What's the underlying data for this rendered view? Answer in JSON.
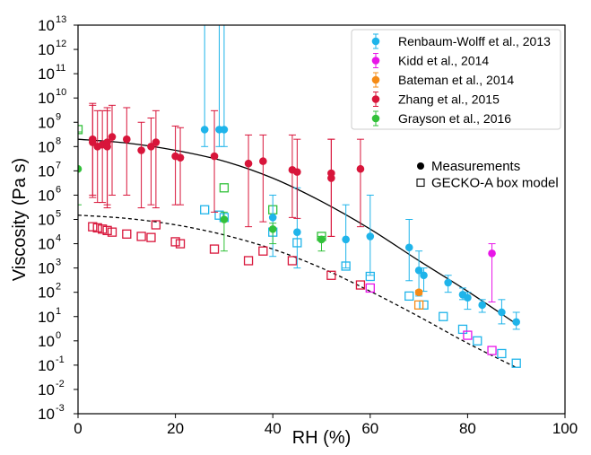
{
  "chart_data": {
    "type": "scatter",
    "xlabel": "RH (%)",
    "ylabel": "Viscosity (Pa s)",
    "xlim": [
      0,
      100
    ],
    "ylim_log10": [
      -3,
      13
    ],
    "xticks": [
      "0",
      "20",
      "40",
      "60",
      "80",
      "100"
    ],
    "yticks": [
      {
        "base": "10",
        "exp": "-3"
      },
      {
        "base": "10",
        "exp": "-2"
      },
      {
        "base": "10",
        "exp": "-1"
      },
      {
        "base": "10",
        "exp": "0"
      },
      {
        "base": "10",
        "exp": "1"
      },
      {
        "base": "10",
        "exp": "2"
      },
      {
        "base": "10",
        "exp": "3"
      },
      {
        "base": "10",
        "exp": "4"
      },
      {
        "base": "10",
        "exp": "5"
      },
      {
        "base": "10",
        "exp": "6"
      },
      {
        "base": "10",
        "exp": "7"
      },
      {
        "base": "10",
        "exp": "8"
      },
      {
        "base": "10",
        "exp": "9"
      },
      {
        "base": "10",
        "exp": "10"
      },
      {
        "base": "10",
        "exp": "11"
      },
      {
        "base": "10",
        "exp": "12"
      },
      {
        "base": "10",
        "exp": "13"
      }
    ],
    "grid": false,
    "legend_position": "top-right",
    "series": [
      {
        "name": "Renbaum-Wolff et al., 2013",
        "color": "#1fb4ea",
        "measurements": [
          {
            "x": 26,
            "y": 500000000.0,
            "lo": 100000000.0,
            "hi": 10000000000000.0
          },
          {
            "x": 29,
            "y": 500000000.0,
            "lo": 100000000.0,
            "hi": 10000000000000.0
          },
          {
            "x": 30,
            "y": 500000000.0,
            "lo": 100000000.0,
            "hi": 10000000000000.0
          },
          {
            "x": 40,
            "y": 120000.0,
            "lo": 3000.0,
            "hi": 1000000.0
          },
          {
            "x": 45,
            "y": 30000.0,
            "lo": 1000.0,
            "hi": 2000000.0
          },
          {
            "x": 55,
            "y": 15000.0,
            "lo": 1000.0,
            "hi": 400000.0
          },
          {
            "x": 60,
            "y": 20000.0,
            "lo": 500.0,
            "hi": 1000000.0
          },
          {
            "x": 68,
            "y": 7000.0,
            "lo": 300.0,
            "hi": 100000.0
          },
          {
            "x": 70,
            "y": 800.0,
            "lo": 70.0,
            "hi": 5000.0
          },
          {
            "x": 71,
            "y": 500.0,
            "lo": 110.0,
            "hi": 1000.0
          },
          {
            "x": 76,
            "y": 250.0,
            "lo": 100.0,
            "hi": 500.0
          },
          {
            "x": 79,
            "y": 80.0,
            "lo": 50.0,
            "hi": 150.0
          },
          {
            "x": 80,
            "y": 60.0,
            "lo": 20.0,
            "hi": 100.0
          },
          {
            "x": 83,
            "y": 30.0,
            "lo": 15.0,
            "hi": 50.0
          },
          {
            "x": 87,
            "y": 15.0,
            "lo": 5,
            "hi": 50.0
          },
          {
            "x": 90,
            "y": 6,
            "lo": 3,
            "hi": 15.0
          }
        ],
        "model": [
          {
            "x": 26,
            "y": 250000.0
          },
          {
            "x": 29,
            "y": 150000.0
          },
          {
            "x": 30,
            "y": 120000.0
          },
          {
            "x": 40,
            "y": 30000.0
          },
          {
            "x": 45,
            "y": 11000.0
          },
          {
            "x": 55,
            "y": 1200.0
          },
          {
            "x": 60,
            "y": 450.0
          },
          {
            "x": 68,
            "y": 70.0
          },
          {
            "x": 71,
            "y": 30.0
          },
          {
            "x": 75,
            "y": 10.0
          },
          {
            "x": 79,
            "y": 3
          },
          {
            "x": 82,
            "y": 1
          },
          {
            "x": 87,
            "y": 0.3
          },
          {
            "x": 90,
            "y": 0.12
          }
        ]
      },
      {
        "name": "Kidd et al., 2014",
        "color": "#e815e8",
        "measurements": [
          {
            "x": 85,
            "y": 4000.0,
            "lo": 40.0,
            "hi": 10000.0
          }
        ],
        "model": [
          {
            "x": 60,
            "y": 150.0
          },
          {
            "x": 80,
            "y": 1.7
          },
          {
            "x": 85,
            "y": 0.4
          }
        ]
      },
      {
        "name": "Bateman et al., 2014",
        "color": "#f58b16",
        "measurements": [
          {
            "x": 70,
            "y": 100.0,
            "lo": 80.0,
            "hi": 120.0
          }
        ],
        "model": [
          {
            "x": 70,
            "y": 30.0
          }
        ]
      },
      {
        "name": "Zhang et al., 2015",
        "color": "#d8153a",
        "measurements": [
          {
            "x": 3,
            "y": 200000000.0,
            "lo": 800000.0,
            "hi": 6000000000.0
          },
          {
            "x": 3,
            "y": 150000000.0,
            "lo": 1000000.0,
            "hi": 5000000000.0
          },
          {
            "x": 4,
            "y": 100000000.0,
            "lo": 500000.0,
            "hi": 3000000000.0
          },
          {
            "x": 5,
            "y": 120000000.0,
            "lo": 500000.0,
            "hi": 3000000000.0
          },
          {
            "x": 6,
            "y": 150000000.0,
            "lo": 400000.0,
            "hi": 4000000000.0
          },
          {
            "x": 6,
            "y": 100000000.0,
            "lo": 300000.0,
            "hi": 3000000000.0
          },
          {
            "x": 7,
            "y": 250000000.0,
            "lo": 1000000.0,
            "hi": 5000000000.0
          },
          {
            "x": 10,
            "y": 200000000.0,
            "lo": 1000000.0,
            "hi": 4000000000.0
          },
          {
            "x": 13,
            "y": 70000000.0,
            "lo": 300000.0,
            "hi": 1000000000.0
          },
          {
            "x": 15,
            "y": 100000000.0,
            "lo": 400000.0,
            "hi": 1500000000.0
          },
          {
            "x": 16,
            "y": 150000000.0,
            "lo": 300000.0,
            "hi": 3000000000.0
          },
          {
            "x": 20,
            "y": 40000000.0,
            "lo": 400000.0,
            "hi": 700000000.0
          },
          {
            "x": 21,
            "y": 35000000.0,
            "lo": 400000.0,
            "hi": 600000000.0
          },
          {
            "x": 28,
            "y": 40000000.0,
            "lo": 200000.0,
            "hi": 3000000000.0
          },
          {
            "x": 35,
            "y": 20000000.0,
            "lo": 50000.0,
            "hi": 300000000.0
          },
          {
            "x": 38,
            "y": 25000000.0,
            "lo": 80000.0,
            "hi": 300000000.0
          },
          {
            "x": 44,
            "y": 11000000.0,
            "lo": 120000.0,
            "hi": 300000000.0
          },
          {
            "x": 45,
            "y": 9000000.0,
            "lo": 110000.0,
            "hi": 200000000.0
          },
          {
            "x": 52,
            "y": 8000000.0,
            "lo": 20000.0,
            "hi": 200000000.0
          },
          {
            "x": 52,
            "y": 5000000.0,
            "lo": 20000.0,
            "hi": 200000000.0
          },
          {
            "x": 58,
            "y": 12000000.0,
            "lo": 50000.0,
            "hi": 200000000.0
          }
        ],
        "model": [
          {
            "x": 3,
            "y": 50000.0
          },
          {
            "x": 4,
            "y": 45000.0
          },
          {
            "x": 5,
            "y": 40000.0
          },
          {
            "x": 6,
            "y": 35000.0
          },
          {
            "x": 7,
            "y": 30000.0
          },
          {
            "x": 10,
            "y": 25000.0
          },
          {
            "x": 13,
            "y": 20000.0
          },
          {
            "x": 15,
            "y": 18000.0
          },
          {
            "x": 16,
            "y": 60000.0
          },
          {
            "x": 20,
            "y": 12000.0
          },
          {
            "x": 21,
            "y": 10000.0
          },
          {
            "x": 28,
            "y": 6000.0
          },
          {
            "x": 35,
            "y": 2000.0
          },
          {
            "x": 38,
            "y": 5000.0
          },
          {
            "x": 44,
            "y": 2000.0
          },
          {
            "x": 52,
            "y": 500.0
          },
          {
            "x": 58,
            "y": 200.0
          }
        ]
      },
      {
        "name": "Grayson et al., 2016",
        "color": "#32c13a",
        "measurements": [
          {
            "x": 0,
            "y": 12000000.0,
            "lo": 400000.0,
            "hi": 400000000.0
          },
          {
            "x": 30,
            "y": 100000.0,
            "lo": 5000.0,
            "hi": 200000.0
          },
          {
            "x": 40,
            "y": 40000.0,
            "lo": 10000.0,
            "hi": 70000.0
          },
          {
            "x": 50,
            "y": 15000.0,
            "lo": 5000.0,
            "hi": 20000.0
          }
        ],
        "model": [
          {
            "x": 0,
            "y": 500000000.0
          },
          {
            "x": 30,
            "y": 2000000.0
          },
          {
            "x": 40,
            "y": 250000.0
          },
          {
            "x": 50,
            "y": 20000.0
          }
        ]
      }
    ],
    "fit_lines": [
      {
        "style": "solid",
        "points": [
          [
            0,
            200000000.0
          ],
          [
            10,
            140000000.0
          ],
          [
            20,
            70000000.0
          ],
          [
            30,
            25000000.0
          ],
          [
            40,
            5000000.0
          ],
          [
            50,
            550000.0
          ],
          [
            60,
            40000.0
          ],
          [
            70,
            2000.0
          ],
          [
            80,
            110.0
          ],
          [
            90,
            5
          ]
        ]
      },
      {
        "style": "dashed",
        "points": [
          [
            0,
            150000.0
          ],
          [
            10,
            110000.0
          ],
          [
            20,
            60000.0
          ],
          [
            30,
            23000.0
          ],
          [
            40,
            6000.0
          ],
          [
            50,
            1000.0
          ],
          [
            60,
            110.0
          ],
          [
            70,
            10.0
          ],
          [
            80,
            0.8
          ],
          [
            90,
            0.08
          ]
        ]
      }
    ],
    "legend_markers": [
      {
        "label": "Measurements",
        "marker": "filled-circle"
      },
      {
        "label": "GECKO-A box model",
        "marker": "open-square"
      }
    ]
  }
}
